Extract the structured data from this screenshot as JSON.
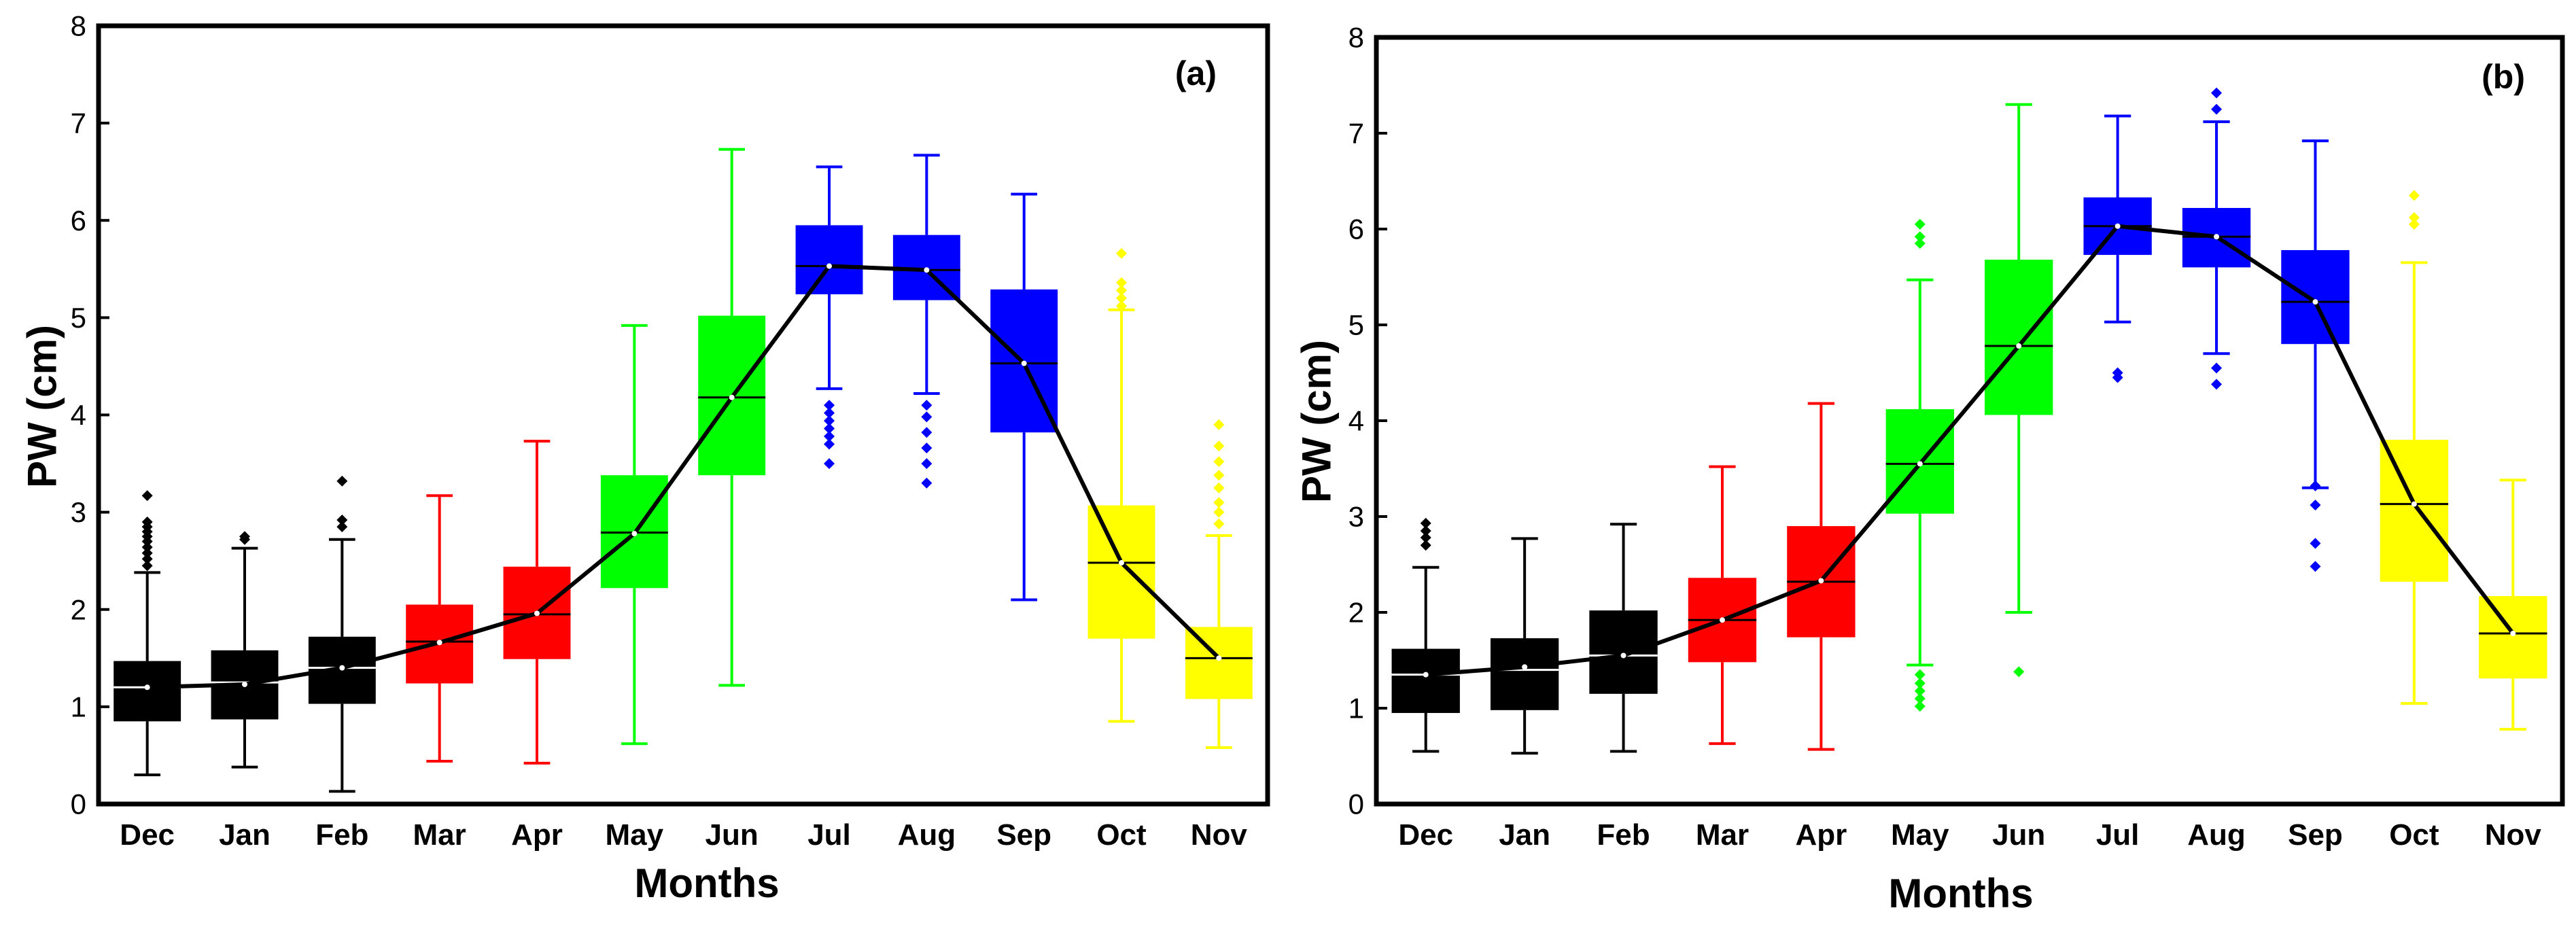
{
  "chart_data": [
    {
      "type": "box",
      "panel_label": "(a)",
      "xlabel": "Months",
      "ylabel": "PW (cm)",
      "ylim": [
        0,
        8
      ],
      "yticks": [
        0,
        1,
        2,
        3,
        4,
        5,
        6,
        7,
        8
      ],
      "grid": false,
      "legend": "none",
      "categories": [
        "Dec",
        "Jan",
        "Feb",
        "Mar",
        "Apr",
        "May",
        "Jun",
        "Jul",
        "Aug",
        "Sep",
        "Oct",
        "Nov"
      ],
      "colors": [
        "#000000",
        "#000000",
        "#000000",
        "#ff0000",
        "#ff0000",
        "#00ff00",
        "#00ff00",
        "#0000ff",
        "#0000ff",
        "#0000ff",
        "#ffff00",
        "#ffff00"
      ],
      "whisker_low": [
        0.3,
        0.38,
        0.13,
        0.44,
        0.42,
        0.62,
        1.22,
        4.27,
        4.22,
        2.1,
        0.85,
        0.58
      ],
      "q1": [
        0.85,
        0.87,
        1.03,
        1.24,
        1.49,
        2.22,
        3.38,
        5.24,
        5.18,
        3.82,
        1.7,
        1.08
      ],
      "median": [
        1.2,
        1.25,
        1.4,
        1.67,
        1.95,
        2.79,
        4.18,
        5.53,
        5.49,
        4.53,
        2.48,
        1.5
      ],
      "q3": [
        1.47,
        1.58,
        1.72,
        2.05,
        2.44,
        3.38,
        5.02,
        5.95,
        5.85,
        5.29,
        3.07,
        1.82
      ],
      "whisker_high": [
        2.38,
        2.63,
        2.72,
        3.17,
        3.73,
        4.92,
        6.73,
        6.55,
        6.67,
        6.27,
        5.08,
        2.76
      ],
      "outliers": [
        [
          2.45,
          2.52,
          2.58,
          2.64,
          2.7,
          2.75,
          2.8,
          2.85,
          2.9,
          3.17
        ],
        [
          2.72,
          2.75
        ],
        [
          2.85,
          2.92,
          3.32
        ],
        [],
        [],
        [],
        [],
        [
          4.1,
          4.02,
          3.94,
          3.86,
          3.78,
          3.7,
          3.5
        ],
        [
          4.1,
          3.98,
          3.82,
          3.66,
          3.5,
          3.3
        ],
        [],
        [
          5.12,
          5.2,
          5.28,
          5.36,
          5.66
        ],
        [
          2.88,
          3.0,
          3.1,
          3.25,
          3.38,
          3.52,
          3.68,
          3.9
        ]
      ],
      "mean_line": [
        1.2,
        1.23,
        1.4,
        1.66,
        1.96,
        2.78,
        4.18,
        5.53,
        5.49,
        4.53,
        2.48,
        1.5
      ]
    },
    {
      "type": "box",
      "panel_label": "(b)",
      "xlabel": "Months",
      "ylabel": "PW (cm)",
      "ylim": [
        0,
        8
      ],
      "yticks": [
        0,
        1,
        2,
        3,
        4,
        5,
        6,
        7,
        8
      ],
      "grid": false,
      "legend": "none",
      "categories": [
        "Dec",
        "Jan",
        "Feb",
        "Mar",
        "Apr",
        "May",
        "Jun",
        "Jul",
        "Aug",
        "Sep",
        "Oct",
        "Nov"
      ],
      "colors": [
        "#000000",
        "#000000",
        "#000000",
        "#ff0000",
        "#ff0000",
        "#00ff00",
        "#00ff00",
        "#0000ff",
        "#0000ff",
        "#0000ff",
        "#ffff00",
        "#ffff00"
      ],
      "whisker_low": [
        0.55,
        0.53,
        0.55,
        0.63,
        0.57,
        1.45,
        2.0,
        5.03,
        4.7,
        3.3,
        1.05,
        0.78
      ],
      "q1": [
        0.95,
        0.98,
        1.15,
        1.48,
        1.74,
        3.03,
        4.06,
        5.73,
        5.6,
        4.8,
        2.32,
        1.31
      ],
      "median": [
        1.35,
        1.4,
        1.55,
        1.92,
        2.32,
        3.55,
        4.78,
        6.03,
        5.92,
        5.24,
        3.13,
        1.78
      ],
      "q3": [
        1.62,
        1.73,
        2.02,
        2.36,
        2.9,
        4.12,
        5.68,
        6.33,
        6.22,
        5.78,
        3.8,
        2.17
      ],
      "whisker_high": [
        2.47,
        2.77,
        2.92,
        3.52,
        4.18,
        5.47,
        7.3,
        7.18,
        7.12,
        6.92,
        5.65,
        3.38
      ],
      "outliers": [
        [
          2.7,
          2.78,
          2.85,
          2.93
        ],
        [],
        [],
        [],
        [],
        [
          1.02,
          1.1,
          1.18,
          1.26,
          1.35,
          5.85,
          5.92,
          6.05
        ],
        [
          1.38
        ],
        [
          4.45,
          4.5
        ],
        [
          4.38,
          4.55,
          7.25,
          7.42
        ],
        [
          2.48,
          2.72,
          3.12,
          3.32
        ],
        [
          6.05,
          6.12,
          6.35
        ],
        []
      ],
      "mean_line": [
        1.35,
        1.43,
        1.55,
        1.92,
        2.33,
        3.55,
        4.78,
        6.03,
        5.92,
        5.24,
        3.13,
        1.78
      ]
    }
  ]
}
